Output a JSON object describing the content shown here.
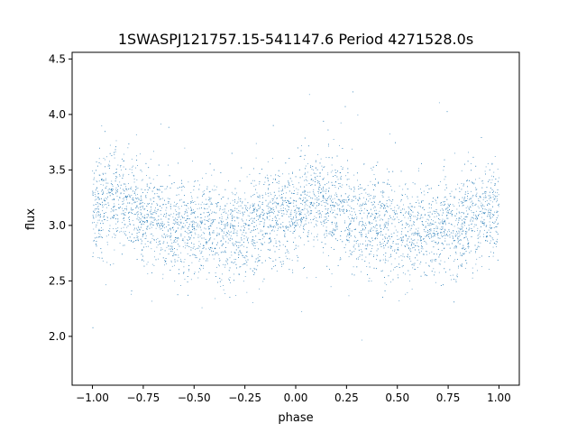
{
  "chart_data": {
    "type": "scatter",
    "title": "1SWASPJ121757.15-541147.6 Period 4271528.0s",
    "xlabel": "phase",
    "ylabel": "flux",
    "xlim": [
      -1.1,
      1.1
    ],
    "ylim": [
      1.56,
      4.56
    ],
    "x_ticks": [
      -1.0,
      -0.75,
      -0.5,
      -0.25,
      0.0,
      0.25,
      0.5,
      0.75,
      1.0
    ],
    "x_tick_labels": [
      "−1.00",
      "−0.75",
      "−0.50",
      "−0.25",
      "0.00",
      "0.25",
      "0.50",
      "0.75",
      "1.00"
    ],
    "y_ticks": [
      2.0,
      2.5,
      3.0,
      3.5,
      4.0,
      4.5
    ],
    "y_tick_labels": [
      "2.0",
      "2.5",
      "3.0",
      "3.5",
      "4.0",
      "4.5"
    ],
    "grid": false,
    "series": [
      {
        "color": "#1f77b4",
        "marker": "dot",
        "approx_point_count": 6000,
        "phase_range": [
          -1.0,
          1.0
        ],
        "flux_profile": {
          "phase": [
            -1.0,
            -0.9,
            -0.8,
            -0.7,
            -0.6,
            -0.5,
            -0.4,
            -0.3,
            -0.2,
            -0.1,
            0.0,
            0.1,
            0.2,
            0.3,
            0.4,
            0.5,
            0.6,
            0.7,
            0.8,
            0.9,
            1.0
          ],
          "median_flux": [
            3.15,
            3.22,
            3.18,
            3.05,
            3.0,
            2.98,
            2.95,
            2.95,
            3.0,
            3.05,
            3.15,
            3.22,
            3.18,
            3.05,
            3.0,
            2.98,
            2.95,
            2.95,
            3.0,
            3.05,
            3.15
          ],
          "scatter_sigma": 0.22,
          "min_flux": 1.7,
          "max_flux": 4.4
        }
      }
    ]
  }
}
